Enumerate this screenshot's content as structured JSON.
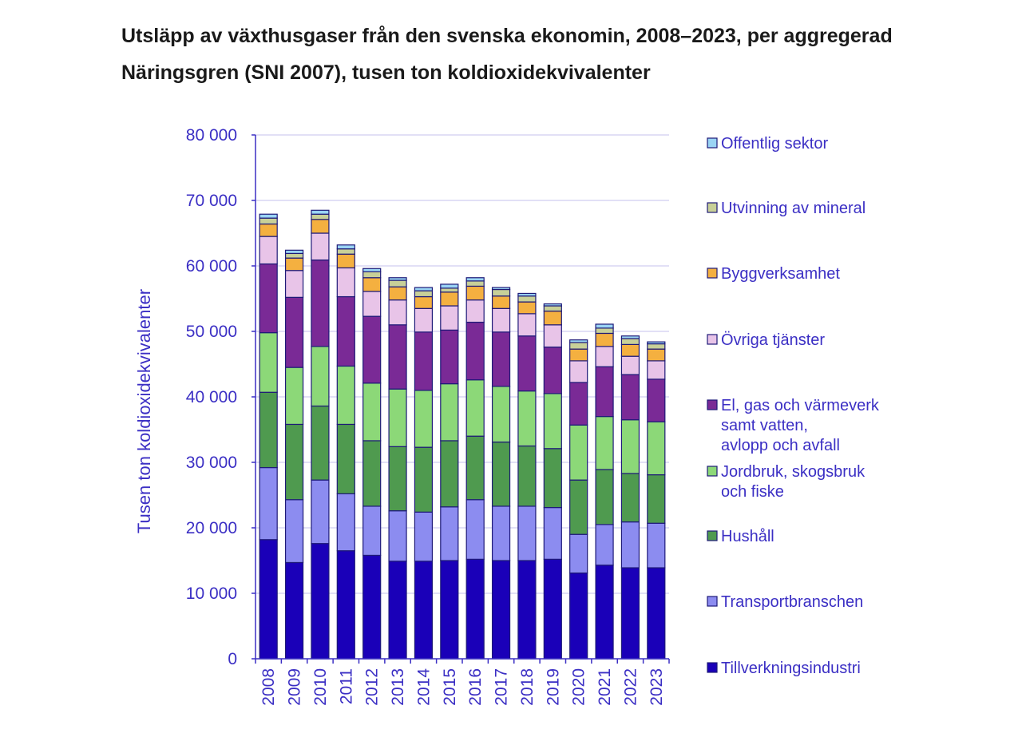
{
  "chart_data": {
    "type": "bar",
    "stacked": true,
    "title": "Utsläpp av växthusgaser från den svenska ekonomin, 2008–2023, per aggregerad Näringsgren (SNI 2007), tusen ton koldioxidekvivalenter",
    "xlabel": "",
    "ylabel": "Tusen ton koldioxidekvivalenter",
    "ylim": [
      0,
      80000
    ],
    "yticks": [
      "0",
      "10 000",
      "20 000",
      "30 000",
      "40 000",
      "50 000",
      "60 000",
      "70 000",
      "80 000"
    ],
    "grid": true,
    "legend_position": "right",
    "categories": [
      "2008",
      "2009",
      "2010",
      "2011",
      "2012",
      "2013",
      "2014",
      "2015",
      "2016",
      "2017",
      "2018",
      "2019",
      "2020",
      "2021",
      "2022",
      "2023"
    ],
    "series": [
      {
        "name": "Tillverkningsindustri",
        "color": "#1a00b8",
        "values": [
          18200,
          14700,
          17600,
          16500,
          15800,
          14900,
          14900,
          15000,
          15200,
          15000,
          15000,
          15200,
          13100,
          14300,
          13900,
          13900
        ]
      },
      {
        "name": "Transportbranschen",
        "color": "#8c8cf0",
        "values": [
          11000,
          9600,
          9700,
          8700,
          7500,
          7700,
          7500,
          8200,
          9100,
          8300,
          8300,
          7900,
          5900,
          6200,
          7000,
          6800
        ]
      },
      {
        "name": "Hushåll",
        "color": "#4f9a4f",
        "values": [
          11500,
          11500,
          11300,
          10600,
          10000,
          9800,
          9900,
          10100,
          9700,
          9800,
          9200,
          9000,
          8300,
          8400,
          7400,
          7400
        ]
      },
      {
        "name": "Jordbruk, skogsbruk och fiske",
        "lines": [
          "Jordbruk, skogsbruk",
          "och fiske"
        ],
        "color": "#8cd878",
        "values": [
          9100,
          8700,
          9100,
          8900,
          8800,
          8800,
          8700,
          8700,
          8600,
          8500,
          8400,
          8400,
          8400,
          8100,
          8200,
          8100
        ]
      },
      {
        "name": "El, gas och värmeverk samt vatten, avlopp och avfall",
        "lines": [
          "El, gas och värmeverk",
          "samt vatten,",
          "avlopp och avfall"
        ],
        "color": "#7a2a96",
        "values": [
          10500,
          10700,
          13200,
          10600,
          10200,
          9800,
          8900,
          8200,
          8800,
          8300,
          8400,
          7100,
          6500,
          7600,
          6900,
          6500
        ]
      },
      {
        "name": "Övriga tjänster",
        "color": "#e8c4e8",
        "values": [
          4200,
          4100,
          4100,
          4400,
          3800,
          3800,
          3600,
          3700,
          3400,
          3600,
          3400,
          3400,
          3300,
          3100,
          2800,
          2800
        ]
      },
      {
        "name": "Byggverksamhet",
        "color": "#f4b040",
        "values": [
          1900,
          1900,
          2100,
          2100,
          2100,
          2000,
          1800,
          2100,
          2100,
          1900,
          1800,
          2100,
          1800,
          2000,
          1800,
          1800
        ]
      },
      {
        "name": "Utvinning av mineral",
        "color": "#c8d098",
        "values": [
          900,
          700,
          800,
          800,
          900,
          1000,
          900,
          600,
          800,
          1000,
          900,
          800,
          1000,
          800,
          900,
          800
        ]
      },
      {
        "name": "Offentlig sektor",
        "color": "#9ad4f4",
        "values": [
          600,
          500,
          600,
          600,
          500,
          400,
          500,
          600,
          500,
          300,
          400,
          300,
          400,
          600,
          400,
          300
        ]
      }
    ]
  },
  "colors": {
    "axis_text": "#3b2fc4",
    "outline": "#1e1a78",
    "grid": "#d0cdf0"
  }
}
